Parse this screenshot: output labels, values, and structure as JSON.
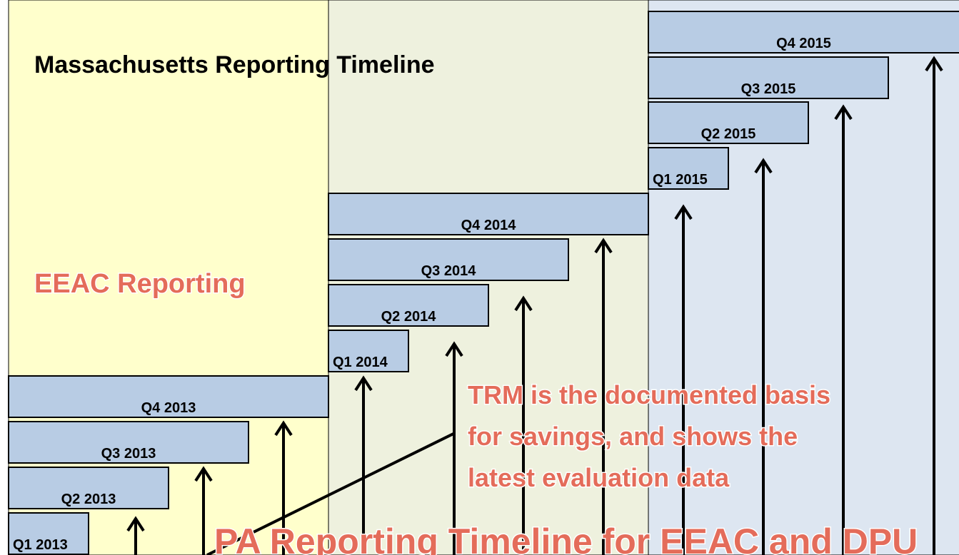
{
  "title": "Massachusetts Reporting Timeline",
  "eeac_label": "EEAC Reporting",
  "trm_note": [
    "TRM is the documented basis",
    "for savings, and shows the",
    "latest evaluation data"
  ],
  "pa_label": "PA Reporting Timeline for EEAC and DPU",
  "quarters": [
    "Q1 2013",
    "Q2 2013",
    "Q3 2013",
    "Q4 2013",
    "Q1 2014",
    "Q2 2014",
    "Q3 2014",
    "Q4 2014",
    "Q1 2015",
    "Q2 2015",
    "Q3 2015",
    "Q4 2015"
  ]
}
